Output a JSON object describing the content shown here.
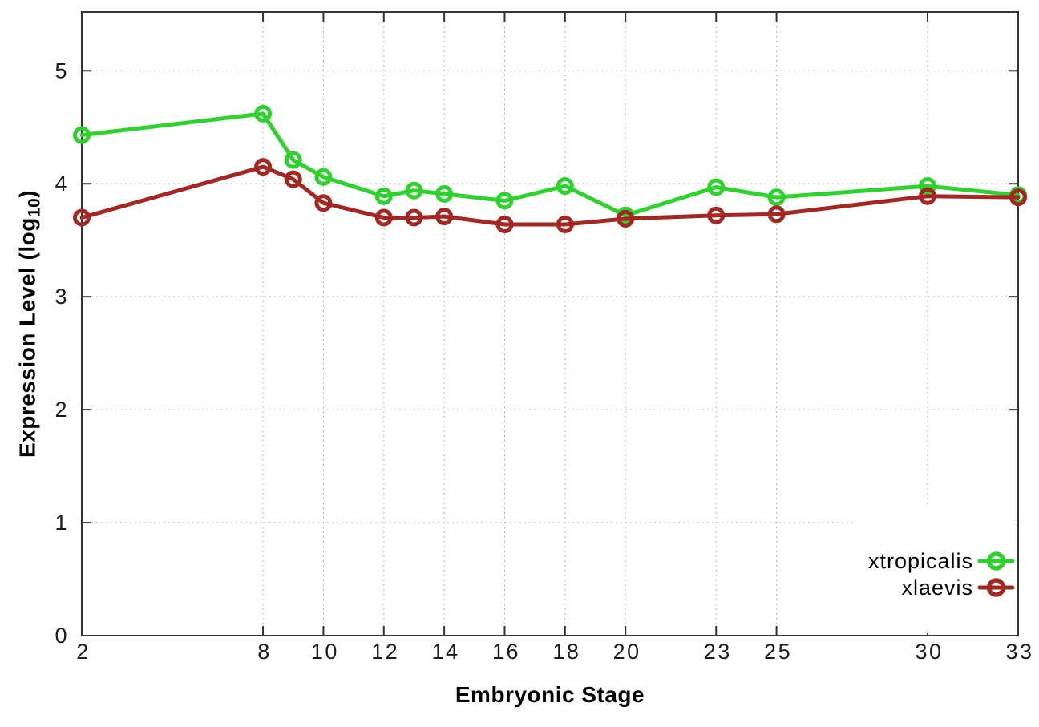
{
  "chart_data": {
    "type": "line",
    "title": "",
    "xlabel": "Embryonic Stage",
    "ylabel": "Expression Level (log10)",
    "ylabel_parts": {
      "prefix": "Expression Level (log",
      "sub": "10",
      "suffix": ")"
    },
    "x": [
      2,
      8,
      9,
      10,
      12,
      13,
      14,
      16,
      18,
      20,
      23,
      25,
      30,
      33
    ],
    "x_tick_labels": [
      2,
      8,
      10,
      12,
      14,
      16,
      18,
      20,
      23,
      25,
      30,
      33
    ],
    "y_tick_labels": [
      0,
      1,
      2,
      3,
      4,
      5
    ],
    "xlim": [
      2,
      33
    ],
    "ylim": [
      0,
      5.52
    ],
    "grid": true,
    "legend_position": "inside-bottom-right",
    "series": [
      {
        "name": "xtropicalis",
        "color": "#2ed12e",
        "marker": "open-circle",
        "values": [
          4.43,
          4.62,
          4.21,
          4.06,
          3.89,
          3.94,
          3.91,
          3.85,
          3.98,
          3.72,
          3.97,
          3.88,
          3.98,
          3.9
        ]
      },
      {
        "name": "xlaevis",
        "color": "#a32722",
        "marker": "open-circle",
        "values": [
          3.7,
          4.15,
          4.04,
          3.83,
          3.7,
          3.7,
          3.71,
          3.64,
          3.64,
          3.69,
          3.72,
          3.73,
          3.89,
          3.88
        ]
      }
    ]
  },
  "colors": {
    "background": "#ffffff",
    "axis": "#333333",
    "grid": "#b5b5b5",
    "tick_text": "#1c1c1c",
    "legend_text": "#000000"
  }
}
